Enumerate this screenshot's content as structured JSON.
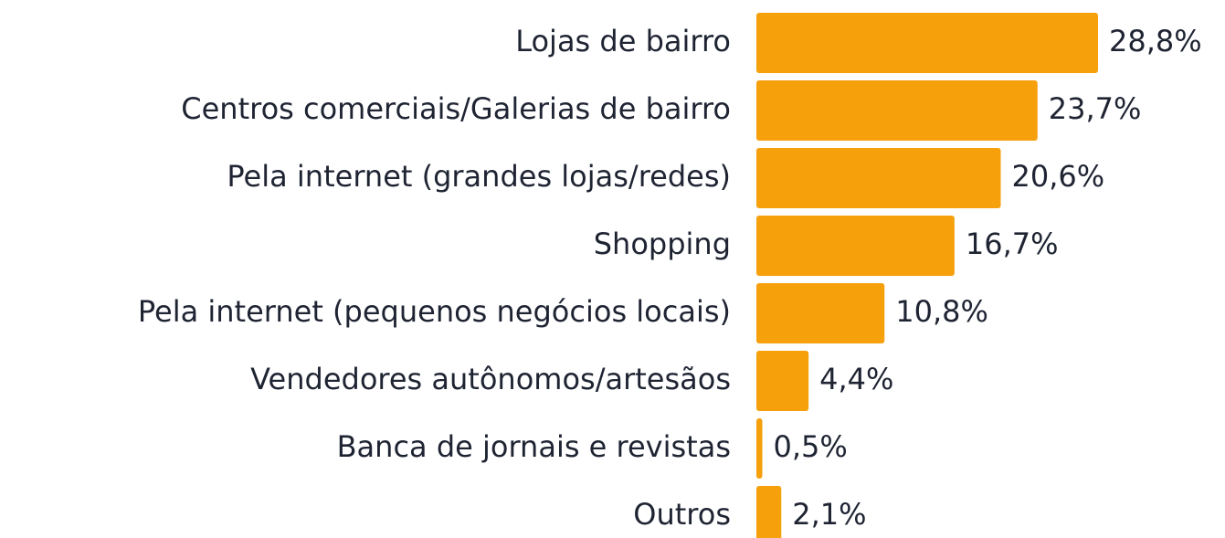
{
  "chart_data": {
    "type": "bar",
    "orientation": "horizontal",
    "categories": [
      "Lojas de bairro",
      "Centros comerciais/Galerias de bairro",
      "Pela internet (grandes lojas/redes)",
      "Shopping",
      "Pela internet (pequenos negócios locais)",
      "Vendedores autônomos/artesãos",
      "Banca de jornais e revistas",
      "Outros"
    ],
    "values": [
      28.8,
      23.7,
      20.6,
      16.7,
      10.8,
      4.4,
      0.5,
      2.1
    ],
    "value_labels": [
      "28,8%",
      "23,7%",
      "20,6%",
      "16,7%",
      "10,8%",
      "4,4%",
      "0,5%",
      "2,1%"
    ],
    "color": "#f6a00c"
  }
}
